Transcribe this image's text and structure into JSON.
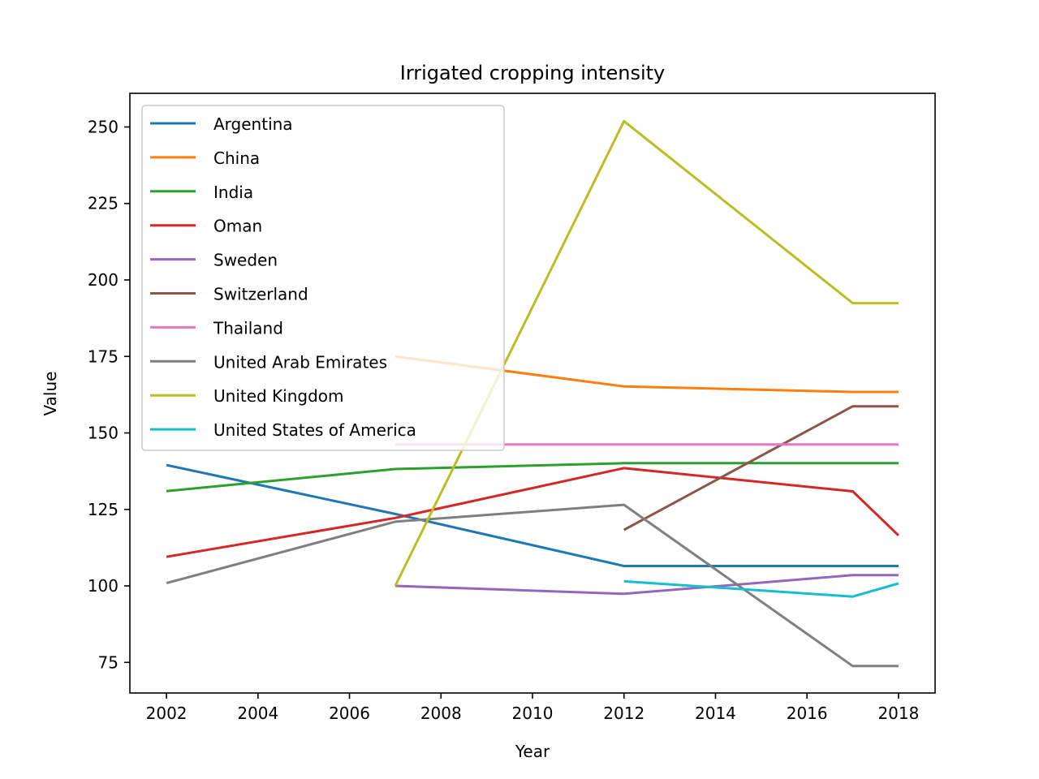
{
  "chart_data": {
    "type": "line",
    "title": "Irrigated cropping intensity",
    "xlabel": "Year",
    "ylabel": "Value",
    "xlim": [
      2001.2,
      2018.8
    ],
    "ylim": [
      65,
      261
    ],
    "xticks": [
      2002,
      2004,
      2006,
      2008,
      2010,
      2012,
      2014,
      2016,
      2018
    ],
    "yticks": [
      75,
      100,
      125,
      150,
      175,
      200,
      225,
      250
    ],
    "grid": false,
    "legend_position": "upper-left",
    "series": [
      {
        "name": "Argentina",
        "color": "#1f77b4",
        "x": [
          2002,
          2007,
          2012,
          2017,
          2018
        ],
        "y": [
          139.5,
          123.5,
          106.5,
          106.5,
          106.5
        ]
      },
      {
        "name": "China",
        "color": "#ff7f0e",
        "x": [
          2007,
          2012,
          2017,
          2018
        ],
        "y": [
          175.0,
          165.2,
          163.4,
          163.4
        ]
      },
      {
        "name": "India",
        "color": "#2ca02c",
        "x": [
          2002,
          2007,
          2012,
          2017,
          2018
        ],
        "y": [
          131.0,
          138.2,
          140.1,
          140.1,
          140.1
        ]
      },
      {
        "name": "Oman",
        "color": "#d62728",
        "x": [
          2002,
          2007,
          2012,
          2017,
          2018
        ],
        "y": [
          109.5,
          122.2,
          138.5,
          130.9,
          116.5
        ]
      },
      {
        "name": "Sweden",
        "color": "#9467bd",
        "x": [
          2007,
          2012,
          2017,
          2018
        ],
        "y": [
          100.0,
          97.4,
          103.5,
          103.5
        ]
      },
      {
        "name": "Switzerland",
        "color": "#8c564b",
        "x": [
          2012,
          2017,
          2018
        ],
        "y": [
          118.3,
          158.7,
          158.7
        ]
      },
      {
        "name": "Thailand",
        "color": "#e377c2",
        "x": [
          2007,
          2012,
          2017,
          2018
        ],
        "y": [
          146.2,
          146.2,
          146.2,
          146.2
        ]
      },
      {
        "name": "United Arab Emirates",
        "color": "#7f7f7f",
        "x": [
          2002,
          2007,
          2012,
          2017,
          2018
        ],
        "y": [
          100.9,
          121.0,
          126.5,
          73.8,
          73.8
        ]
      },
      {
        "name": "United Kingdom",
        "color": "#bcbd22",
        "x": [
          2007,
          2012,
          2017,
          2018
        ],
        "y": [
          100.0,
          251.9,
          192.4,
          192.4
        ]
      },
      {
        "name": "United States of America",
        "color": "#17becf",
        "x": [
          2012,
          2017,
          2018
        ],
        "y": [
          101.5,
          96.5,
          100.8
        ]
      }
    ]
  }
}
